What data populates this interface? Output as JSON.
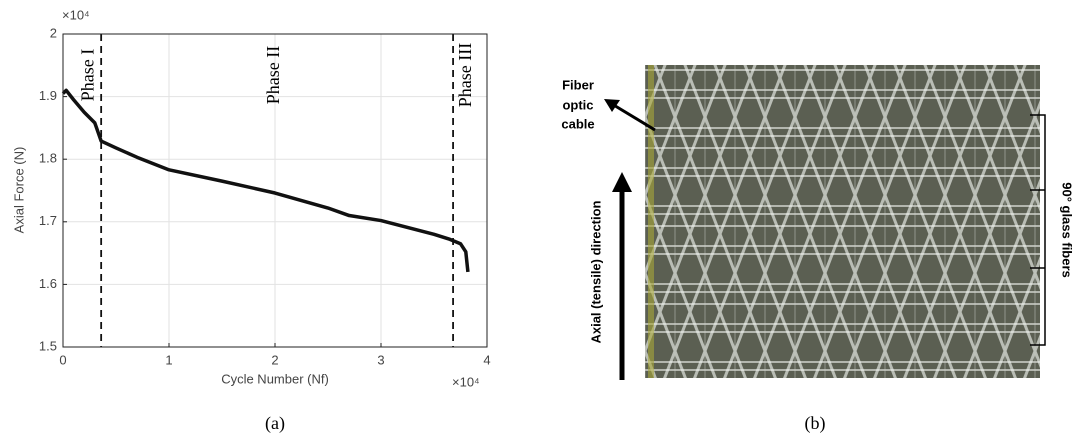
{
  "chart_data": {
    "type": "line",
    "x_label": "Cycle Number (Nf)",
    "y_label": "Axial Force (N)",
    "x_multiplier": "×10⁴",
    "y_multiplier": "×10⁴",
    "x": [
      0,
      0.03,
      0.1,
      0.2,
      0.3,
      0.36,
      0.5,
      0.7,
      1,
      1.5,
      2,
      2.5,
      2.7,
      3,
      3.5,
      3.65,
      3.75,
      3.8,
      3.82
    ],
    "values": [
      1.905,
      1.91,
      1.895,
      1.875,
      1.858,
      1.829,
      1.818,
      1.803,
      1.783,
      1.765,
      1.746,
      1.722,
      1.71,
      1.702,
      1.68,
      1.672,
      1.665,
      1.652,
      1.62
    ],
    "color": "#111111",
    "xlim": [
      0,
      4
    ],
    "ylim": [
      1.5,
      2
    ],
    "xticks": [
      0,
      1,
      2,
      3,
      4
    ],
    "yticks": [
      1.5,
      1.6,
      1.7,
      1.8,
      1.9,
      2
    ],
    "grid": true,
    "annotations": [
      {
        "label": "Phase I",
        "x": 0.36
      },
      {
        "label": "Phase II",
        "x": 2
      },
      {
        "label": "Phase III",
        "x": 3.68
      }
    ]
  },
  "photo": {
    "fiber_label": [
      "Fiber",
      "optic",
      "cable"
    ],
    "direction_label": "Axial (tensile) direction",
    "glass_fiber_label": "90° glass fibers"
  },
  "captions": [
    "(a)",
    "(b)"
  ]
}
